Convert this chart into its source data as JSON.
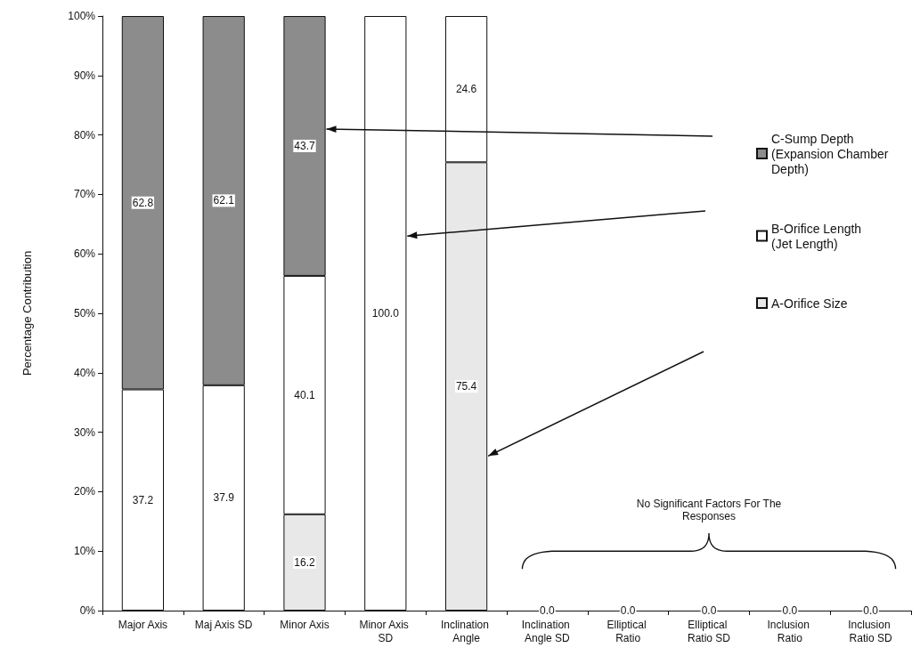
{
  "chart_data": {
    "type": "bar",
    "stacked": true,
    "ylabel": "Percentage Contribution",
    "categories": [
      "Major Axis",
      "Maj Axis SD",
      "Minor Axis",
      "Minor Axis SD",
      "Inclination Angle",
      "Inclination Angle SD",
      "Elliptical Ratio",
      "Elliptical Ratio SD",
      "Inclusion Ratio",
      "Inclusion Ratio SD"
    ],
    "series": [
      {
        "name": "A-Orifice Size",
        "color": "#e8e8e8",
        "values": [
          0,
          0,
          16.2,
          0,
          75.4,
          0,
          0,
          0,
          0,
          0
        ],
        "value_labels": [
          null,
          null,
          "16.2",
          null,
          "75.4",
          "0.0",
          "0.0",
          "0.0",
          "0.0",
          "0.0"
        ]
      },
      {
        "name": "B-Orifice Length (Jet Length)",
        "color": "#ffffff",
        "values": [
          37.2,
          37.9,
          40.1,
          100,
          24.6,
          0,
          0,
          0,
          0,
          0
        ],
        "value_labels": [
          "37.2",
          "37.9",
          "40.1",
          "100.0",
          "24.6",
          null,
          null,
          null,
          null,
          null
        ]
      },
      {
        "name": "C-Sump Depth (Expansion Chamber Depth)",
        "color": "#8c8c8c",
        "values": [
          62.8,
          62.1,
          43.7,
          0,
          0,
          0,
          0,
          0,
          0,
          0
        ],
        "value_labels": [
          "62.8",
          "62.1",
          "43.7",
          null,
          null,
          null,
          null,
          null,
          null,
          null
        ]
      }
    ],
    "ylim": [
      0,
      100
    ],
    "yticks": [
      {
        "value": 0,
        "label": "0%"
      },
      {
        "value": 10,
        "label": "10%"
      },
      {
        "value": 20,
        "label": "20%"
      },
      {
        "value": 30,
        "label": "30%"
      },
      {
        "value": 40,
        "label": "40%"
      },
      {
        "value": 50,
        "label": "50%"
      },
      {
        "value": 60,
        "label": "60%"
      },
      {
        "value": 70,
        "label": "70%"
      },
      {
        "value": 80,
        "label": "80%"
      },
      {
        "value": 90,
        "label": "90%"
      },
      {
        "value": 100,
        "label": "100%"
      }
    ],
    "grid": false,
    "legend": "top right",
    "annotations": [
      "No Significant Factors For The Responses"
    ]
  }
}
